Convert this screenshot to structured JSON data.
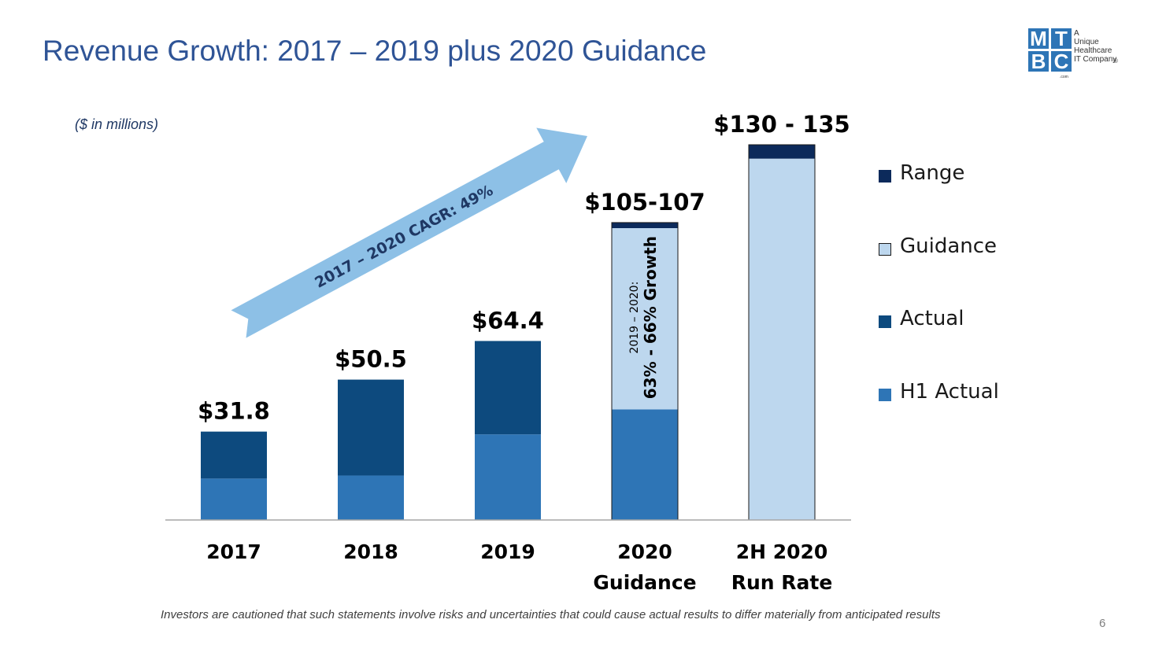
{
  "slide": {
    "title": "Revenue Growth: 2017 – 2019 plus 2020 Guidance",
    "unit_note": "($ in millions)",
    "disclaimer": "Investors are cautioned that such statements involve risks and uncertainties that could cause actual results to differ materially from anticipated results",
    "page_number": "6"
  },
  "logo": {
    "letters": [
      "M",
      "T",
      "B",
      "C"
    ],
    "tagline": [
      "A",
      "Unique",
      "Healthcare",
      "IT Company"
    ],
    "dotcom": ".com",
    "registered": "®"
  },
  "colors": {
    "range": "#0c2a5b",
    "guidance": "#bdd7ee",
    "actual": "#0d4a7e",
    "h1_actual": "#2e75b6",
    "arrow": "#8dc0e6",
    "title": "#2f5496",
    "logo_blue": "#2e75b6"
  },
  "chart_data": {
    "type": "bar",
    "stacked": true,
    "unit": "$ in millions",
    "categories": [
      "2017",
      "2018",
      "2019",
      "2020 Guidance",
      "2H 2020 Run Rate"
    ],
    "category_lines": [
      [
        "2017"
      ],
      [
        "2018"
      ],
      [
        "2019"
      ],
      [
        "2020",
        "Guidance"
      ],
      [
        "2H 2020",
        "Run Rate"
      ]
    ],
    "series": [
      {
        "name": "H1 Actual",
        "values": [
          14.9,
          16.0,
          30.8,
          39.8,
          0
        ]
      },
      {
        "name": "Actual",
        "values": [
          16.9,
          34.5,
          33.6,
          0,
          0
        ]
      },
      {
        "name": "Guidance",
        "values": [
          0,
          0,
          0,
          65.2,
          130
        ]
      },
      {
        "name": "Range",
        "values": [
          0,
          0,
          0,
          2.0,
          5.0
        ]
      }
    ],
    "totals_labels": [
      "$31.8",
      "$50.5",
      "$64.4",
      "$105-107",
      "$130 - 135"
    ],
    "legend": [
      "Range",
      "Guidance",
      "Actual",
      "H1 Actual"
    ],
    "ylim": [
      0,
      135
    ],
    "annotations": {
      "cagr": "2017 – 2020 CAGR: 49%",
      "growth_small": "2019 – 2020:",
      "growth_big": "63% - 66% Growth"
    }
  }
}
